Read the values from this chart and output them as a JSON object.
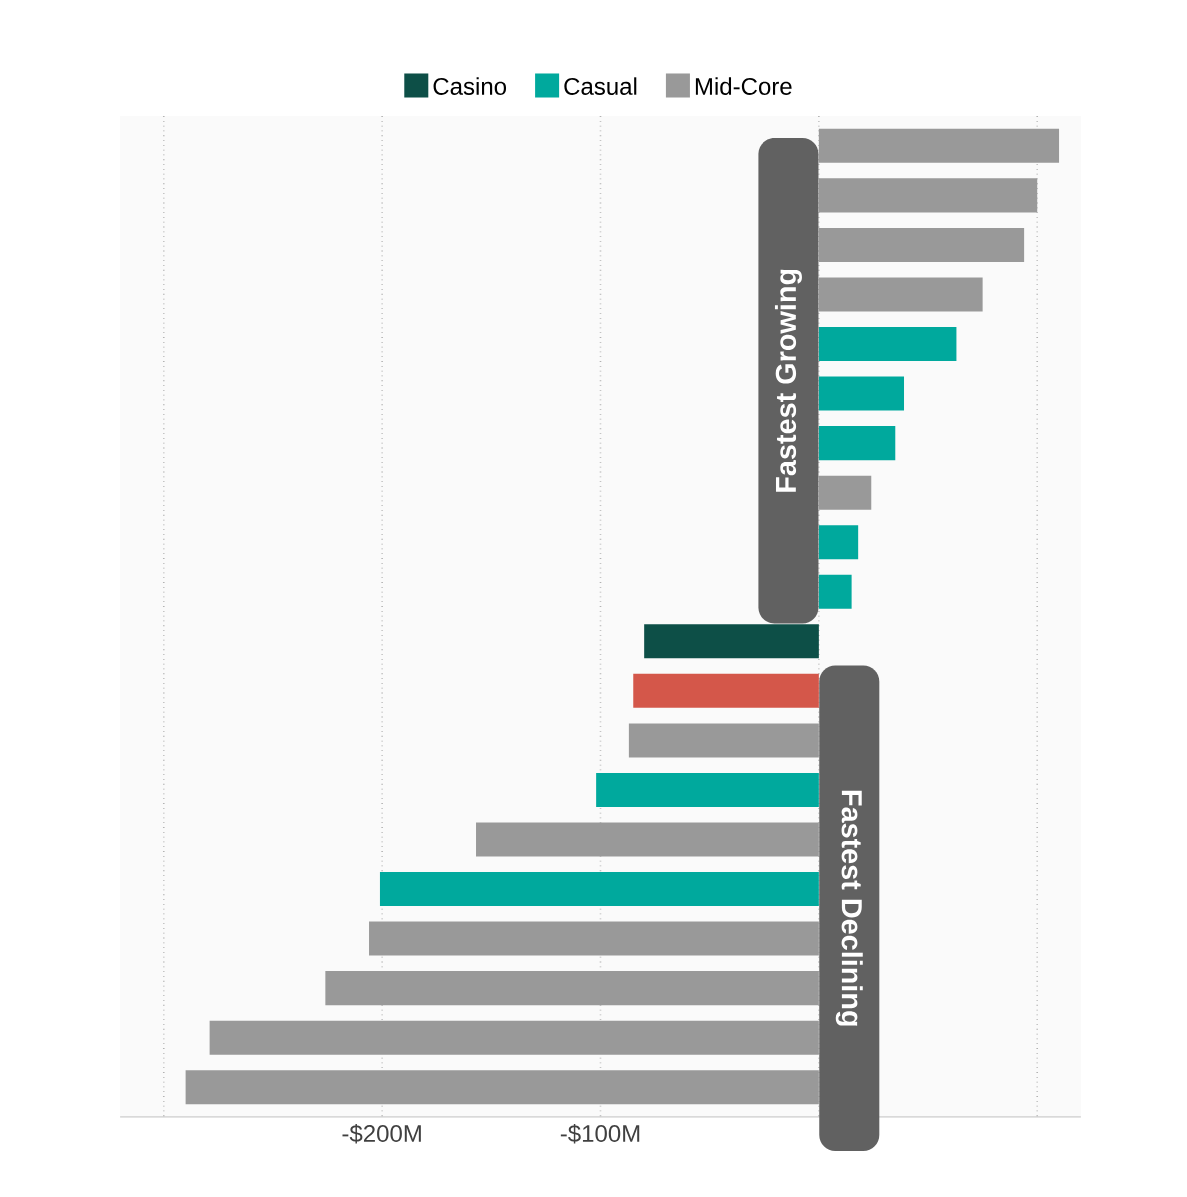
{
  "chart_data": {
    "type": "bar",
    "orientation": "horizontal",
    "categories": [
      null,
      null,
      null,
      null,
      null,
      null,
      null,
      null,
      null,
      null,
      null,
      null,
      null,
      null,
      null,
      null,
      null,
      null,
      null,
      null
    ],
    "series": [
      {
        "name": "Casino",
        "color": "#0d4f47",
        "values": [
          null,
          null,
          null,
          null,
          null,
          null,
          null,
          null,
          null,
          null,
          -80,
          null,
          null,
          null,
          null,
          null,
          null,
          null,
          null,
          null
        ]
      },
      {
        "name": "Casual",
        "color": "#00a99d",
        "values": [
          null,
          null,
          null,
          null,
          63,
          39,
          35,
          null,
          18,
          15,
          null,
          null,
          null,
          -102,
          null,
          -201,
          null,
          null,
          null,
          null
        ]
      },
      {
        "name": "Mid-Core",
        "color": "#999999",
        "values": [
          110,
          100,
          94,
          75,
          null,
          null,
          null,
          24,
          null,
          null,
          null,
          null,
          -87,
          null,
          -157,
          null,
          -206,
          -226,
          -279,
          -290
        ]
      },
      {
        "color": "#d4574a",
        "values": [
          null,
          null,
          null,
          null,
          null,
          null,
          null,
          null,
          null,
          null,
          null,
          -85,
          null,
          null,
          null,
          null,
          null,
          null,
          null,
          null
        ]
      }
    ],
    "xlim": [
      -320,
      120
    ],
    "xticks": [
      {
        "value": -300,
        "label": null
      },
      {
        "value": -200,
        "label": "-$200M"
      },
      {
        "value": -100,
        "label": "-$100M"
      },
      {
        "value": 0,
        "label": null
      },
      {
        "value": 100,
        "label": null
      }
    ],
    "grid": "x",
    "legend": "top",
    "annotations": [
      "Fastest Growing",
      "Fastest Declining"
    ]
  }
}
